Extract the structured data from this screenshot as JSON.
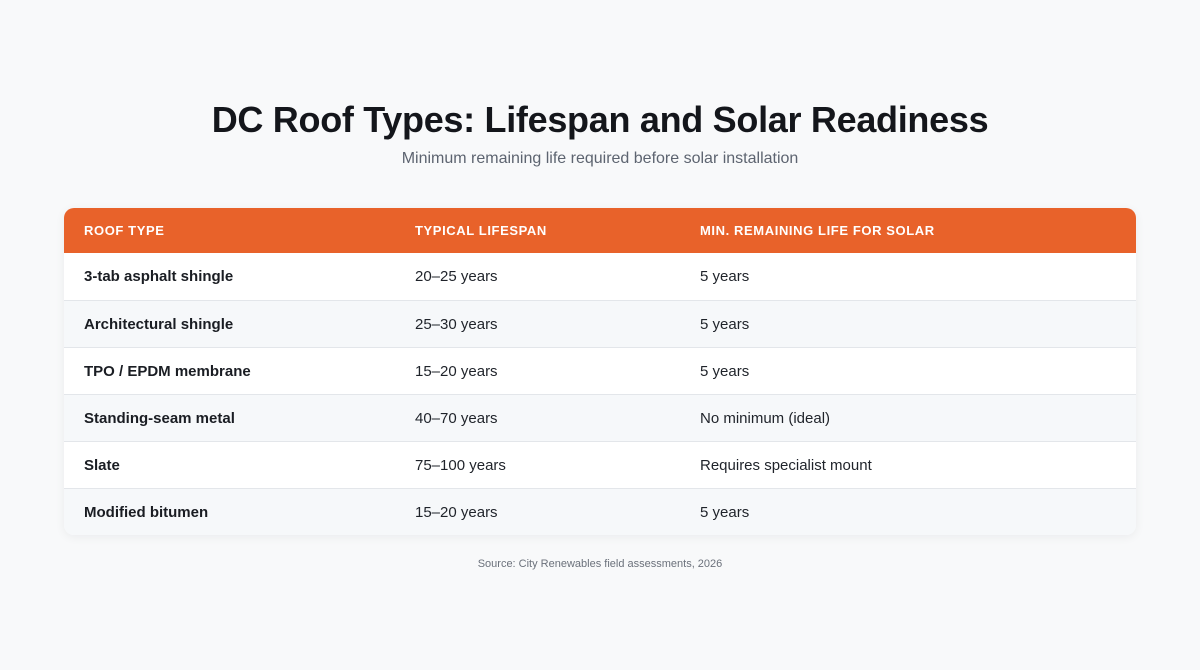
{
  "title": "DC Roof Types: Lifespan and Solar Readiness",
  "subtitle": "Minimum remaining life required before solar installation",
  "colors": {
    "header_bg": "#e8622a",
    "header_text": "#ffffff",
    "row_alt_bg": "#f6f8fa",
    "page_bg": "#f8f9fa"
  },
  "chart_data": {
    "type": "table",
    "columns": [
      "ROOF TYPE",
      "TYPICAL LIFESPAN",
      "MIN. REMAINING LIFE FOR SOLAR"
    ],
    "rows": [
      [
        "3-tab asphalt shingle",
        "20–25 years",
        "5 years"
      ],
      [
        "Architectural shingle",
        "25–30 years",
        "5 years"
      ],
      [
        "TPO / EPDM membrane",
        "15–20 years",
        "5 years"
      ],
      [
        "Standing-seam metal",
        "40–70 years",
        "No minimum (ideal)"
      ],
      [
        "Slate",
        "75–100 years",
        "Requires specialist mount"
      ],
      [
        "Modified bitumen",
        "15–20 years",
        "5 years"
      ]
    ]
  },
  "source": "Source: City Renewables field assessments, 2026"
}
